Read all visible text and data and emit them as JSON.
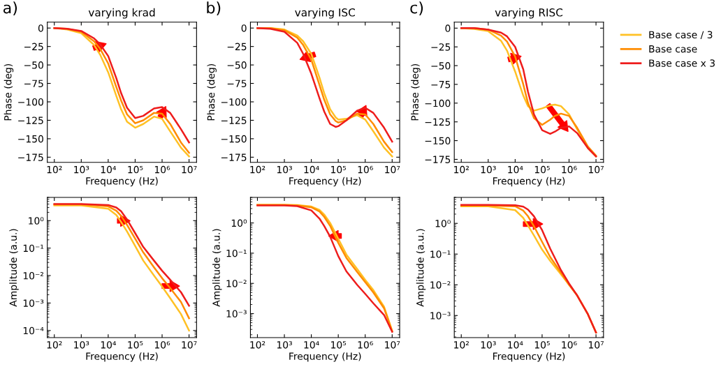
{
  "chart_data": [
    {
      "type": "line",
      "title": "varying krad",
      "annotations": [
        "a)"
      ],
      "xlabel": "Frequency (Hz)",
      "ylabel": "Phase (deg)",
      "log": "x",
      "xlim": [
        55,
        19000000
      ],
      "ylim": [
        -182,
        8
      ],
      "xticks": [
        {
          "value": 100,
          "label": "10²"
        },
        {
          "value": 1000,
          "label": "10³"
        },
        {
          "value": 10000,
          "label": "10⁴"
        },
        {
          "value": 100000,
          "label": "10⁵"
        },
        {
          "value": 1000000,
          "label": "10⁶"
        },
        {
          "value": 10000000,
          "label": "10⁷"
        }
      ],
      "yticks": [
        {
          "value": 0,
          "label": "0"
        },
        {
          "value": -25,
          "label": "−25"
        },
        {
          "value": -50,
          "label": "−50"
        },
        {
          "value": -75,
          "label": "−75"
        },
        {
          "value": -100,
          "label": "−100"
        },
        {
          "value": -125,
          "label": "−125"
        },
        {
          "value": -150,
          "label": "−150"
        },
        {
          "value": -175,
          "label": "−175"
        }
      ],
      "x": [
        100,
        300,
        1000,
        3000,
        5000,
        10000,
        20000,
        30000,
        50000,
        100000,
        200000,
        500000,
        1000000,
        2000000,
        5000000,
        10000000
      ],
      "series": [
        {
          "color": "#ffc125",
          "values": [
            0,
            -2,
            -7,
            -23,
            -36,
            -60,
            -92,
            -110,
            -127,
            -135,
            -130,
            -120,
            -123,
            -140,
            -162,
            -174
          ]
        },
        {
          "color": "#ff8c00",
          "values": [
            0,
            -1,
            -5,
            -18,
            -28,
            -48,
            -80,
            -98,
            -117,
            -129,
            -125,
            -115,
            -116,
            -130,
            -155,
            -169
          ]
        },
        {
          "color": "#ee1c1c",
          "values": [
            0,
            -1,
            -4,
            -14,
            -22,
            -38,
            -68,
            -88,
            -108,
            -122,
            -119,
            -109,
            -107,
            -115,
            -137,
            -155
          ]
        }
      ]
    },
    {
      "type": "line",
      "title": "varying ISC",
      "annotations": [
        "b)"
      ],
      "xlabel": "Frequency (Hz)",
      "ylabel": "Phase (deg)",
      "log": "x",
      "xlim": [
        55,
        19000000
      ],
      "ylim": [
        -182,
        8
      ],
      "xticks": [
        {
          "value": 100,
          "label": "10²"
        },
        {
          "value": 1000,
          "label": "10³"
        },
        {
          "value": 10000,
          "label": "10⁴"
        },
        {
          "value": 100000,
          "label": "10⁵"
        },
        {
          "value": 1000000,
          "label": "10⁶"
        },
        {
          "value": 10000000,
          "label": "10⁷"
        }
      ],
      "yticks": [
        {
          "value": 0,
          "label": "0"
        },
        {
          "value": -25,
          "label": "−25"
        },
        {
          "value": -50,
          "label": "−50"
        },
        {
          "value": -75,
          "label": "−75"
        },
        {
          "value": -100,
          "label": "−100"
        },
        {
          "value": -125,
          "label": "−125"
        },
        {
          "value": -150,
          "label": "−150"
        },
        {
          "value": -175,
          "label": "−175"
        }
      ],
      "x": [
        100,
        300,
        1000,
        3000,
        5000,
        10000,
        20000,
        30000,
        50000,
        80000,
        100000,
        200000,
        500000,
        1000000,
        2000000,
        5000000,
        10000000
      ],
      "series": [
        {
          "color": "#ffc125",
          "values": [
            0,
            0,
            -2,
            -10,
            -18,
            -35,
            -67,
            -88,
            -110,
            -121,
            -124,
            -123,
            -118,
            -124,
            -140,
            -162,
            -174
          ]
        },
        {
          "color": "#ff8c00",
          "values": [
            0,
            0,
            -3,
            -13,
            -23,
            -43,
            -77,
            -97,
            -117,
            -126,
            -128,
            -125,
            -116,
            -117,
            -130,
            -154,
            -168
          ]
        },
        {
          "color": "#ee1c1c",
          "values": [
            0,
            -1,
            -5,
            -20,
            -35,
            -62,
            -95,
            -113,
            -130,
            -134,
            -133,
            -125,
            -112,
            -108,
            -115,
            -135,
            -154
          ]
        }
      ]
    },
    {
      "type": "line",
      "title": "varying RISC",
      "annotations": [
        "c)"
      ],
      "xlabel": "Frequency (Hz)",
      "ylabel": "Phase (deg)",
      "log": "x",
      "xlim": [
        55,
        19000000
      ],
      "ylim": [
        -179,
        8
      ],
      "legend": "right",
      "xticks": [
        {
          "value": 100,
          "label": "10²"
        },
        {
          "value": 1000,
          "label": "10³"
        },
        {
          "value": 10000,
          "label": "10⁴"
        },
        {
          "value": 100000,
          "label": "10⁵"
        },
        {
          "value": 1000000,
          "label": "10⁶"
        },
        {
          "value": 10000000,
          "label": "10⁷"
        }
      ],
      "yticks": [
        {
          "value": 0,
          "label": "0"
        },
        {
          "value": -25,
          "label": "−25"
        },
        {
          "value": -50,
          "label": "−50"
        },
        {
          "value": -75,
          "label": "−75"
        },
        {
          "value": -100,
          "label": "−100"
        },
        {
          "value": -125,
          "label": "−125"
        },
        {
          "value": -150,
          "label": "−150"
        },
        {
          "value": -175,
          "label": "−175"
        }
      ],
      "x": [
        100,
        300,
        1000,
        3000,
        5000,
        10000,
        20000,
        30000,
        50000,
        100000,
        200000,
        300000,
        500000,
        1000000,
        2000000,
        5000000,
        10000000
      ],
      "series": [
        {
          "name": "Base case / 3",
          "color": "#ffc125",
          "values": [
            0,
            -1,
            -4,
            -17,
            -30,
            -58,
            -90,
            -104,
            -110,
            -107,
            -103,
            -102,
            -104,
            -115,
            -135,
            -160,
            -171
          ]
        },
        {
          "name": "Base case",
          "color": "#ff8c00",
          "values": [
            0,
            0,
            -2,
            -10,
            -18,
            -38,
            -75,
            -100,
            -120,
            -129,
            -122,
            -117,
            -114,
            -117,
            -133,
            -158,
            -170
          ]
        },
        {
          "name": "Base case x 3",
          "color": "#ee1c1c",
          "values": [
            0,
            0,
            -2,
            -6,
            -11,
            -25,
            -55,
            -85,
            -115,
            -136,
            -141,
            -138,
            -133,
            -131,
            -140,
            -160,
            -171
          ]
        }
      ]
    },
    {
      "type": "line",
      "xlabel": "Frequency (Hz)",
      "ylabel": "Amplitude (a.u.)",
      "log": "xy",
      "xlim": [
        55,
        19000000
      ],
      "ylim": [
        5.5e-05,
        7
      ],
      "xticks": [
        {
          "value": 100,
          "label": "10²"
        },
        {
          "value": 1000,
          "label": "10³"
        },
        {
          "value": 10000,
          "label": "10⁴"
        },
        {
          "value": 100000,
          "label": "10⁵"
        },
        {
          "value": 1000000,
          "label": "10⁶"
        },
        {
          "value": 10000000,
          "label": "10⁷"
        }
      ],
      "yticks": [
        {
          "value": 1,
          "label": "10⁰"
        },
        {
          "value": 0.1,
          "label": "10⁻¹"
        },
        {
          "value": 0.01,
          "label": "10⁻²"
        },
        {
          "value": 0.001,
          "label": "10⁻³"
        },
        {
          "value": 0.0001,
          "label": "10⁻⁴"
        }
      ],
      "x": [
        100,
        1000,
        10000,
        20000,
        30000,
        50000,
        100000,
        200000,
        500000,
        1000000,
        2000000,
        5000000,
        10000000
      ],
      "series": [
        {
          "color": "#ffc125",
          "values": [
            3.6,
            3.6,
            2.7,
            1.6,
            0.9,
            0.4,
            0.12,
            0.035,
            0.01,
            0.004,
            0.0015,
            0.0004,
            0.0001
          ]
        },
        {
          "color": "#ff8c00",
          "values": [
            3.9,
            3.9,
            3.3,
            2.3,
            1.5,
            0.7,
            0.22,
            0.07,
            0.02,
            0.008,
            0.0035,
            0.0011,
            0.00028
          ]
        },
        {
          "color": "#ee1c1c",
          "values": [
            4.0,
            4.0,
            3.7,
            3.0,
            2.2,
            1.1,
            0.35,
            0.11,
            0.035,
            0.015,
            0.007,
            0.0025,
            0.0008
          ]
        }
      ]
    },
    {
      "type": "line",
      "xlabel": "Frequency (Hz)",
      "ylabel": "Amplitude (a.u.)",
      "log": "xy",
      "xlim": [
        55,
        19000000
      ],
      "ylim": [
        0.00016,
        7
      ],
      "xticks": [
        {
          "value": 100,
          "label": "10²"
        },
        {
          "value": 1000,
          "label": "10³"
        },
        {
          "value": 10000,
          "label": "10⁴"
        },
        {
          "value": 100000,
          "label": "10⁵"
        },
        {
          "value": 1000000,
          "label": "10⁶"
        },
        {
          "value": 10000000,
          "label": "10⁷"
        }
      ],
      "yticks": [
        {
          "value": 1,
          "label": "10⁰"
        },
        {
          "value": 0.1,
          "label": "10⁻¹"
        },
        {
          "value": 0.01,
          "label": "10⁻²"
        },
        {
          "value": 0.001,
          "label": "10⁻³"
        }
      ],
      "x": [
        100,
        1000,
        3000,
        10000,
        20000,
        30000,
        50000,
        100000,
        200000,
        500000,
        1000000,
        2000000,
        5000000,
        10000000
      ],
      "series": [
        {
          "color": "#ffc125",
          "values": [
            4.0,
            4.0,
            3.9,
            3.5,
            2.7,
            1.9,
            1.0,
            0.3,
            0.09,
            0.03,
            0.013,
            0.006,
            0.0017,
            0.00027
          ]
        },
        {
          "color": "#ff8c00",
          "values": [
            3.9,
            3.9,
            3.8,
            3.3,
            2.4,
            1.6,
            0.8,
            0.22,
            0.07,
            0.024,
            0.011,
            0.005,
            0.0015,
            0.00026
          ]
        },
        {
          "color": "#ee1c1c",
          "values": [
            3.8,
            3.8,
            3.6,
            2.6,
            1.4,
            0.8,
            0.35,
            0.08,
            0.025,
            0.009,
            0.0045,
            0.0022,
            0.0009,
            0.00025
          ]
        }
      ]
    },
    {
      "type": "line",
      "xlabel": "Frequency (Hz)",
      "ylabel": "Amplitude (a.u.)",
      "log": "xy",
      "xlim": [
        55,
        19000000
      ],
      "ylim": [
        0.00019,
        7
      ],
      "xticks": [
        {
          "value": 100,
          "label": "10²"
        },
        {
          "value": 1000,
          "label": "10³"
        },
        {
          "value": 10000,
          "label": "10⁴"
        },
        {
          "value": 100000,
          "label": "10⁵"
        },
        {
          "value": 1000000,
          "label": "10⁶"
        },
        {
          "value": 10000000,
          "label": "10⁷"
        }
      ],
      "yticks": [
        {
          "value": 1,
          "label": "10⁰"
        },
        {
          "value": 0.1,
          "label": "10⁻¹"
        },
        {
          "value": 0.01,
          "label": "10⁻²"
        },
        {
          "value": 0.001,
          "label": "10⁻³"
        }
      ],
      "x": [
        100,
        1000,
        10000,
        20000,
        30000,
        50000,
        100000,
        200000,
        500000,
        1000000,
        2000000,
        5000000,
        10000000
      ],
      "series": [
        {
          "color": "#ffc125",
          "values": [
            3.6,
            3.6,
            2.7,
            1.5,
            0.85,
            0.4,
            0.14,
            0.06,
            0.022,
            0.01,
            0.0045,
            0.0011,
            0.00028
          ]
        },
        {
          "color": "#ff8c00",
          "values": [
            3.8,
            3.8,
            3.6,
            2.6,
            1.7,
            0.8,
            0.25,
            0.08,
            0.025,
            0.01,
            0.0045,
            0.0011,
            0.00028
          ]
        },
        {
          "color": "#ee1c1c",
          "values": [
            4.0,
            4.0,
            3.9,
            3.5,
            2.8,
            1.7,
            0.6,
            0.15,
            0.03,
            0.011,
            0.0045,
            0.0011,
            0.00028
          ]
        }
      ]
    }
  ]
}
